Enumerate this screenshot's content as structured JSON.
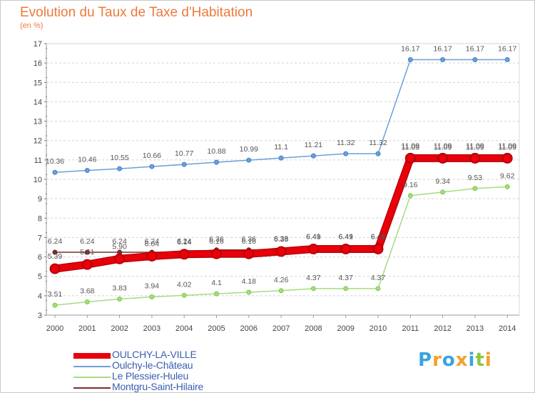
{
  "title": "Evolution du Taux de Taxe d'Habitation",
  "subtitle": "(en %)",
  "chart_data": {
    "type": "line",
    "title": "Evolution du Taux de Taxe d'Habitation",
    "ylabel": "(en %)",
    "xlabel": "",
    "x": [
      "2000",
      "2001",
      "2002",
      "2003",
      "2004",
      "2005",
      "2006",
      "2007",
      "2008",
      "2009",
      "2010",
      "2011",
      "2012",
      "2013",
      "2014"
    ],
    "ylim": [
      3,
      17
    ],
    "yticks": [
      3,
      4,
      5,
      6,
      7,
      8,
      9,
      10,
      11,
      12,
      13,
      14,
      15,
      16,
      17
    ],
    "grid": "horizontal dashed",
    "legend": "bottom-left",
    "series": [
      {
        "name": "OULCHY-LA-VILLE",
        "color": "#e8000b",
        "marker_color": "#b80008",
        "values": [
          5.39,
          5.61,
          5.9,
          6.04,
          6.14,
          6.16,
          6.16,
          6.28,
          6.41,
          6.41,
          6.41,
          11.09,
          11.09,
          11.09,
          11.09
        ],
        "labels": [
          "5.39",
          "5.61",
          "5.90",
          "6.04",
          "6.14",
          "6.16",
          "6.16",
          "6.28",
          "6.41",
          "6.41",
          "6.41",
          "11.09",
          "11.09",
          "11.09",
          "11.09"
        ]
      },
      {
        "name": "Oulchy-le-Château",
        "color": "#6e9fd6",
        "marker_color": "#3f82c8",
        "values": [
          10.36,
          10.46,
          10.55,
          10.66,
          10.77,
          10.88,
          10.99,
          11.1,
          11.21,
          11.32,
          11.32,
          16.17,
          16.17,
          16.17,
          16.17
        ],
        "labels": [
          "10.36",
          "10.46",
          "10.55",
          "10.66",
          "10.77",
          "10.88",
          "10.99",
          "11.1",
          "11.21",
          "11.32",
          "11.32",
          "16.17",
          "16.17",
          "16.17",
          "16.17"
        ]
      },
      {
        "name": "Le Plessier-Huleu",
        "color": "#a5dc82",
        "marker_color": "#7ccc45",
        "values": [
          3.51,
          3.68,
          3.83,
          3.94,
          4.02,
          4.1,
          4.18,
          4.26,
          4.37,
          4.37,
          4.37,
          9.16,
          9.34,
          9.53,
          9.62
        ],
        "labels": [
          "3.51",
          "3.68",
          "3.83",
          "3.94",
          "4.02",
          "4.1",
          "4.18",
          "4.26",
          "4.37",
          "4.37",
          "4.37",
          "9.16",
          "9.34",
          "9.53",
          "9.62"
        ]
      },
      {
        "name": "Montgru-Saint-Hilaire",
        "color": "#7a2e2e",
        "marker_color": "#6b1f1f",
        "values": [
          6.24,
          6.24,
          6.24,
          6.24,
          6.24,
          6.36,
          6.36,
          6.38,
          6.49,
          6.49,
          6.49,
          11.09,
          11.09,
          11.09,
          11.09
        ],
        "labels": [
          "6.24",
          "6.24",
          "6.24",
          "6.24",
          "6.24",
          "6.36",
          "6.36",
          "6.38",
          "6.49",
          "6.49",
          "6.49",
          "11.09",
          "11.09",
          "11.09",
          "11.09"
        ]
      }
    ]
  },
  "legend": [
    {
      "name": "OULCHY-LA-VILLE",
      "color": "#e8000b",
      "thickness": 8
    },
    {
      "name": "Oulchy-le-Château",
      "color": "#6e9fd6",
      "thickness": 2
    },
    {
      "name": "Le Plessier-Huleu",
      "color": "#a5dc82",
      "thickness": 2
    },
    {
      "name": "Montgru-Saint-Hilaire",
      "color": "#7a2e2e",
      "thickness": 2
    }
  ],
  "logo": {
    "letters": [
      "P",
      "r",
      "o",
      "x",
      "i",
      "t",
      "i"
    ],
    "colors": [
      "#3aa3e0",
      "#f2a12e",
      "#3aa3e0",
      "#f2a12e",
      "#3aa3e0",
      "#8cc63f",
      "#f2a12e"
    ]
  }
}
